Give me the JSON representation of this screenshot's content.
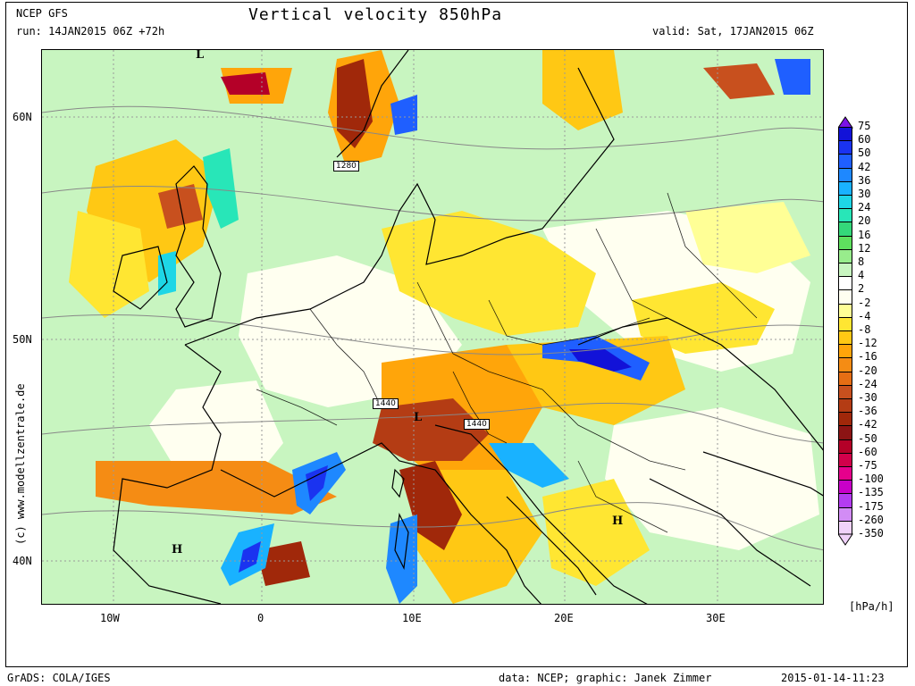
{
  "header": {
    "model": "NCEP GFS",
    "run": "run: 14JAN2015 06Z +72h",
    "title": "Vertical velocity 850hPa",
    "valid": "valid: Sat, 17JAN2015 06Z"
  },
  "axes": {
    "lat_labels": [
      "60N",
      "50N",
      "40N"
    ],
    "lon_labels": [
      "10W",
      "0",
      "10E",
      "20E",
      "30E"
    ]
  },
  "colorbar": {
    "unit": "[hPa/h]",
    "levels": [
      {
        "label": "75",
        "color": "#7b12e6"
      },
      {
        "label": "60",
        "color": "#1212d8"
      },
      {
        "label": "50",
        "color": "#1a33f0"
      },
      {
        "label": "42",
        "color": "#1f5fff"
      },
      {
        "label": "36",
        "color": "#1e88ff"
      },
      {
        "label": "30",
        "color": "#19b2ff"
      },
      {
        "label": "24",
        "color": "#1ed6e6"
      },
      {
        "label": "20",
        "color": "#28e6b8"
      },
      {
        "label": "16",
        "color": "#34d87a"
      },
      {
        "label": "12",
        "color": "#5ee05e"
      },
      {
        "label": "8",
        "color": "#98ec8c"
      },
      {
        "label": "4",
        "color": "#c8f5c0"
      },
      {
        "label": "2",
        "color": "#ffffff"
      },
      {
        "label": "-2",
        "color": "#fffff0"
      },
      {
        "label": "-4",
        "color": "#ffff96"
      },
      {
        "label": "-8",
        "color": "#ffe632"
      },
      {
        "label": "-12",
        "color": "#ffc814"
      },
      {
        "label": "-16",
        "color": "#ffa50a"
      },
      {
        "label": "-20",
        "color": "#f58c14"
      },
      {
        "label": "-24",
        "color": "#e66e14"
      },
      {
        "label": "-30",
        "color": "#c8501e"
      },
      {
        "label": "-36",
        "color": "#b43c14"
      },
      {
        "label": "-42",
        "color": "#a0280a"
      },
      {
        "label": "-50",
        "color": "#8c1414"
      },
      {
        "label": "-60",
        "color": "#b40028"
      },
      {
        "label": "-75",
        "color": "#d2004b"
      },
      {
        "label": "-100",
        "color": "#e6008c"
      },
      {
        "label": "-135",
        "color": "#c800c8"
      },
      {
        "label": "-175",
        "color": "#b43cf0"
      },
      {
        "label": "-260",
        "color": "#d28cf5"
      },
      {
        "label": "-350",
        "color": "#f0d2fa"
      }
    ]
  },
  "map_labels": {
    "pressure_centers": [
      "L",
      "L",
      "H",
      "H"
    ],
    "isohypses": [
      "1280",
      "1440",
      "1440"
    ]
  },
  "watermark": "(c) www.modellzentrale.de",
  "footer": {
    "software": "GrADS: COLA/IGES",
    "credits": "data: NCEP; graphic: Janek Zimmer",
    "timestamp": "2015-01-14-11:23"
  }
}
